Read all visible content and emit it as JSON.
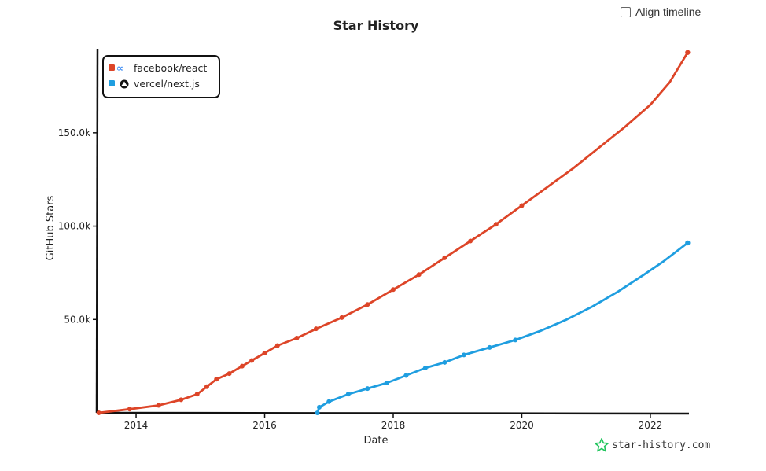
{
  "controls": {
    "align_timeline_label": "Align timeline"
  },
  "watermark": {
    "text": "star-history.com",
    "icon": "star-icon",
    "icon_color": "#22c55e"
  },
  "chart_data": {
    "type": "line",
    "title": "Star History",
    "xlabel": "Date",
    "ylabel": "GitHub Stars",
    "xlim": [
      2013.4,
      2022.6
    ],
    "ylim": [
      0,
      195000
    ],
    "x_ticks": [
      2014,
      2016,
      2018,
      2020,
      2022
    ],
    "x_tick_labels": [
      "2014",
      "2016",
      "2018",
      "2020",
      "2022"
    ],
    "y_ticks": [
      50000,
      100000,
      150000
    ],
    "y_tick_labels": [
      "50.0k",
      "100.0k",
      "150.0k"
    ],
    "grid": false,
    "legend_position": "top-left",
    "series": [
      {
        "name": "facebook/react",
        "color": "#dd4528",
        "icon": "infinity-icon",
        "points": [
          [
            2013.42,
            0
          ],
          [
            2013.9,
            2000
          ],
          [
            2014.35,
            4000
          ],
          [
            2014.7,
            7000
          ],
          [
            2014.95,
            10000
          ],
          [
            2015.1,
            14000
          ],
          [
            2015.25,
            18000
          ],
          [
            2015.45,
            21000
          ],
          [
            2015.65,
            25000
          ],
          [
            2015.8,
            28000
          ],
          [
            2016.0,
            32000
          ],
          [
            2016.2,
            36000
          ],
          [
            2016.5,
            40000
          ],
          [
            2016.8,
            45000
          ],
          [
            2017.2,
            51000
          ],
          [
            2017.6,
            58000
          ],
          [
            2018.0,
            66000
          ],
          [
            2018.4,
            74000
          ],
          [
            2018.8,
            83000
          ],
          [
            2019.2,
            92000
          ],
          [
            2019.6,
            101000
          ],
          [
            2020.0,
            111000
          ],
          [
            2020.4,
            121000
          ],
          [
            2020.8,
            131000
          ],
          [
            2021.2,
            142000
          ],
          [
            2021.6,
            153000
          ],
          [
            2022.0,
            165000
          ],
          [
            2022.3,
            177000
          ],
          [
            2022.58,
            193000
          ]
        ]
      },
      {
        "name": "vercel/next.js",
        "color": "#1f9ee0",
        "icon": "triangle-icon",
        "points": [
          [
            2016.82,
            0
          ],
          [
            2016.85,
            3000
          ],
          [
            2017.0,
            6000
          ],
          [
            2017.3,
            10000
          ],
          [
            2017.6,
            13000
          ],
          [
            2017.9,
            16000
          ],
          [
            2018.2,
            20000
          ],
          [
            2018.5,
            24000
          ],
          [
            2018.8,
            27000
          ],
          [
            2019.1,
            31000
          ],
          [
            2019.5,
            35000
          ],
          [
            2019.9,
            39000
          ],
          [
            2020.3,
            44000
          ],
          [
            2020.7,
            50000
          ],
          [
            2021.1,
            57000
          ],
          [
            2021.5,
            65000
          ],
          [
            2021.9,
            74000
          ],
          [
            2022.2,
            81000
          ],
          [
            2022.58,
            91000
          ]
        ]
      }
    ]
  }
}
